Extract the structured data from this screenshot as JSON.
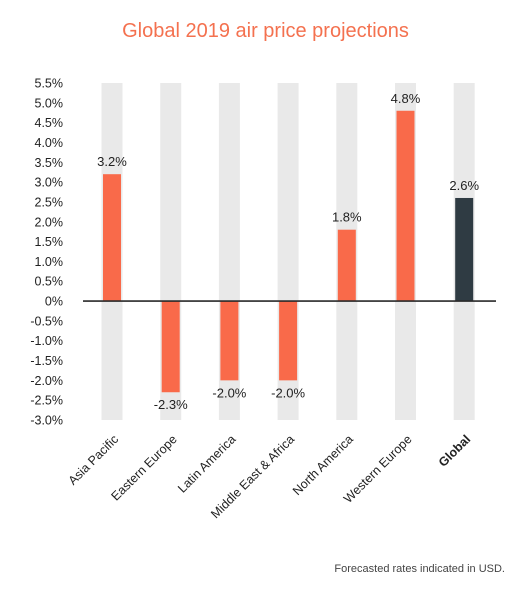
{
  "chart_data": {
    "type": "bar",
    "title": "Global 2019 air price projections",
    "categories": [
      "Asia Pacific",
      "Eastern Europe",
      "Latin America",
      "Middle East & Africa",
      "North America",
      "Western Europe",
      "Global"
    ],
    "values": [
      3.2,
      -2.3,
      -2.0,
      -2.0,
      1.8,
      4.8,
      2.6
    ],
    "data_labels": [
      "3.2%",
      "-2.3%",
      "-2.0%",
      "-2.0%",
      "1.8%",
      "4.8%",
      "2.6%"
    ],
    "highlight_category": "Global",
    "ylim": [
      -3.0,
      5.5
    ],
    "yticks": [
      5.5,
      5.0,
      4.5,
      4.0,
      3.5,
      3.0,
      2.5,
      2.0,
      1.5,
      1.0,
      0.5,
      0,
      -0.5,
      -1.0,
      -1.5,
      -2.0,
      -2.5,
      -3.0
    ],
    "ytick_labels": [
      "5.5%",
      "5.0%",
      "4.5%",
      "4.0%",
      "3.5%",
      "3.0%",
      "2.5%",
      "2.0%",
      "1.5%",
      "1.0%",
      "0.5%",
      "0%",
      "-0.5%",
      "-1.0%",
      "-1.5%",
      "-2.0%",
      "-2.5%",
      "-3.0%"
    ],
    "xlabel": "",
    "ylabel": "",
    "grid": false,
    "colors": {
      "bar": "#f96a4a",
      "highlight_bar": "#2f3b43",
      "track": "#e9e9e9",
      "zero_line": "#2a2a2a",
      "title": "#f4714f"
    }
  },
  "footnote": "Forecasted rates indicated in USD."
}
